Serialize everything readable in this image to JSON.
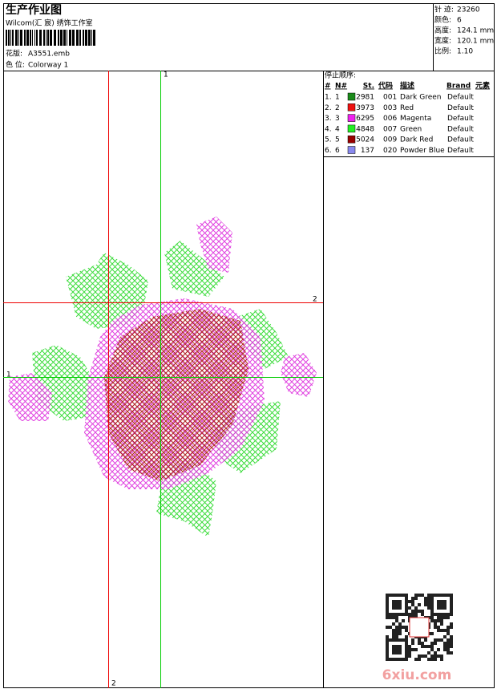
{
  "header": {
    "title": "生产作业图",
    "subtitle": "Wilcom(汇 宸) 绣饰工作室",
    "design_label": "花版:",
    "design_value": "A3551.emb",
    "colorway_label": "色 位:",
    "colorway_value": "Colorway 1"
  },
  "stats": [
    {
      "label": "针 迹:",
      "value": "23260"
    },
    {
      "label": "颜色:",
      "value": "6"
    },
    {
      "label": "高度:",
      "value": "124.1 mm"
    },
    {
      "label": "宽度:",
      "value": "120.1 mm"
    },
    {
      "label": "比例:",
      "value": "1.10"
    }
  ],
  "stop_sequence": {
    "title": "停止顺序:",
    "columns": [
      "#",
      "N#",
      "St.",
      "代码",
      "描述",
      "Brand",
      "元素"
    ],
    "rows": [
      {
        "num": "1.",
        "n": "1",
        "color": "#1a8a1a",
        "st": "2981",
        "code": "001",
        "desc": "Dark Green",
        "brand": "Default"
      },
      {
        "num": "2.",
        "n": "2",
        "color": "#ee1111",
        "st": "3973",
        "code": "003",
        "desc": "Red",
        "brand": "Default"
      },
      {
        "num": "3.",
        "n": "3",
        "color": "#ee22ee",
        "st": "6295",
        "code": "006",
        "desc": "Magenta",
        "brand": "Default"
      },
      {
        "num": "4.",
        "n": "4",
        "color": "#22ee22",
        "st": "4848",
        "code": "007",
        "desc": "Green",
        "brand": "Default"
      },
      {
        "num": "5.",
        "n": "5",
        "color": "#990000",
        "st": "5024",
        "code": "009",
        "desc": "Dark Red",
        "brand": "Default"
      },
      {
        "num": "6.",
        "n": "6",
        "color": "#8888ee",
        "st": "137",
        "code": "020",
        "desc": "Powder Blue",
        "brand": "Default"
      }
    ]
  },
  "axis_labels": {
    "top": "1",
    "right": "2",
    "left": "1",
    "bottom": "2"
  },
  "watermark": "6xiu.com"
}
